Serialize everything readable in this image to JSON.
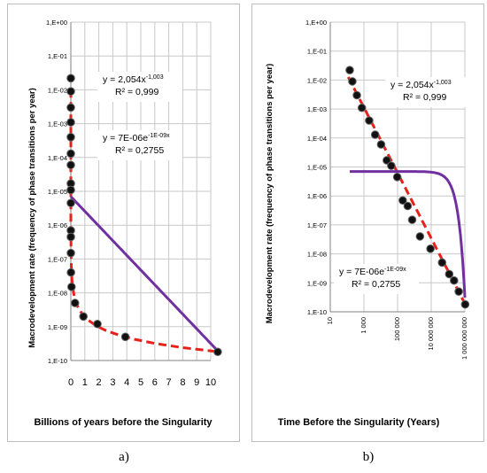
{
  "chart_data": [
    {
      "type": "scatter",
      "panel_label": "a)",
      "xlabel": "Billions of years before the Singularity",
      "ylabel": "Macrodevelopment rate (frequency of phase transitions per year)",
      "x_scale": "linear",
      "y_scale": "log",
      "xlim": [
        0,
        10
      ],
      "ylim": [
        1e-10,
        1
      ],
      "x_ticks": [
        "0",
        "1",
        "2",
        "3",
        "4",
        "5",
        "6",
        "7",
        "8",
        "9",
        "10"
      ],
      "y_ticks": [
        "1,E+00",
        "1,E-01",
        "1,E-02",
        "1,E-03",
        "1,E-04",
        "1,E-05",
        "1,E-06",
        "1,E-07",
        "1,E-08",
        "1,E-09",
        "1,E-10"
      ],
      "grid": true,
      "points": [
        {
          "x": 2e-07,
          "y": 0.022
        },
        {
          "x": 3e-07,
          "y": 0.009
        },
        {
          "x": 6e-07,
          "y": 0.003
        },
        {
          "x": 1.3e-06,
          "y": 0.0011
        },
        {
          "x": 4e-06,
          "y": 0.0004
        },
        {
          "x": 1e-05,
          "y": 0.00013
        },
        {
          "x": 2.5e-05,
          "y": 6e-05
        },
        {
          "x": 6e-05,
          "y": 1.7e-05
        },
        {
          "x": 0.00012,
          "y": 1.1e-05
        },
        {
          "x": 0.0003,
          "y": 4.5e-06
        },
        {
          "x": 0.0007,
          "y": 7e-07
        },
        {
          "x": 0.0015,
          "y": 4.5e-07
        },
        {
          "x": 0.003,
          "y": 1.5e-07
        },
        {
          "x": 0.01,
          "y": 4e-08
        },
        {
          "x": 0.05,
          "y": 1.5e-08
        },
        {
          "x": 0.3,
          "y": 5e-09
        },
        {
          "x": 0.9,
          "y": 2e-09
        },
        {
          "x": 1.9,
          "y": 1.2e-09
        },
        {
          "x": 3.9,
          "y": 5e-10
        },
        {
          "x": 10.5,
          "y": 1.8e-10
        }
      ],
      "fits": [
        {
          "equation": "y = 2,054x",
          "exponent": "-1,003",
          "r2": "R² = 0,999",
          "kind": "power",
          "a": 2.054,
          "b": -1.003,
          "color": "#e8201a",
          "dash": true
        },
        {
          "equation": "y = 7E-06e",
          "exponent": "-1E-09x",
          "r2": "R² = 0,2755",
          "kind": "exp",
          "a": 7e-06,
          "b": -1e-09,
          "color": "#7030a0",
          "dash": false
        }
      ]
    },
    {
      "type": "scatter",
      "panel_label": "b)",
      "xlabel": "Time Before the Singularity (Years)",
      "ylabel": "Macrodevelopment rate (frequency of phase transitions per year)",
      "x_scale": "log",
      "y_scale": "log",
      "xlim": [
        10,
        10000000000
      ],
      "ylim": [
        1e-10,
        1
      ],
      "x_ticks": [
        "10",
        "1 000",
        "100 000",
        "10 000 000",
        "1 000 000 000"
      ],
      "y_ticks": [
        "1,E+00",
        "1,E-01",
        "1,E-02",
        "1,E-03",
        "1,E-04",
        "1,E-05",
        "1,E-06",
        "1,E-07",
        "1,E-08",
        "1,E-09",
        "1,E-10"
      ],
      "grid": true,
      "points": [
        {
          "x": 200,
          "y": 0.022
        },
        {
          "x": 300,
          "y": 0.009
        },
        {
          "x": 600,
          "y": 0.003
        },
        {
          "x": 1300,
          "y": 0.0011
        },
        {
          "x": 4000,
          "y": 0.0004
        },
        {
          "x": 10000,
          "y": 0.00013
        },
        {
          "x": 25000,
          "y": 6e-05
        },
        {
          "x": 60000,
          "y": 1.7e-05
        },
        {
          "x": 120000,
          "y": 1.1e-05
        },
        {
          "x": 300000,
          "y": 4.5e-06
        },
        {
          "x": 700000,
          "y": 7e-07
        },
        {
          "x": 1500000,
          "y": 4.5e-07
        },
        {
          "x": 3000000,
          "y": 1.5e-07
        },
        {
          "x": 10000000,
          "y": 4e-08
        },
        {
          "x": 50000000,
          "y": 1.5e-08
        },
        {
          "x": 300000000,
          "y": 5e-09
        },
        {
          "x": 900000000,
          "y": 2e-09
        },
        {
          "x": 1900000000,
          "y": 1.2e-09
        },
        {
          "x": 3900000000,
          "y": 5e-10
        },
        {
          "x": 10500000000,
          "y": 1.8e-10
        }
      ],
      "fits": [
        {
          "equation": "y = 2,054x",
          "exponent": "-1,003",
          "r2": "R² = 0,999",
          "kind": "power",
          "a": 2.054,
          "b": -1.003,
          "color": "#e8201a",
          "dash": true
        },
        {
          "equation": "y = 7E-06e",
          "exponent": "-1E-09x",
          "r2": "R² = 0,2755",
          "kind": "exp",
          "a": 7e-06,
          "b": -1e-09,
          "color": "#7030a0",
          "dash": false
        }
      ]
    }
  ]
}
